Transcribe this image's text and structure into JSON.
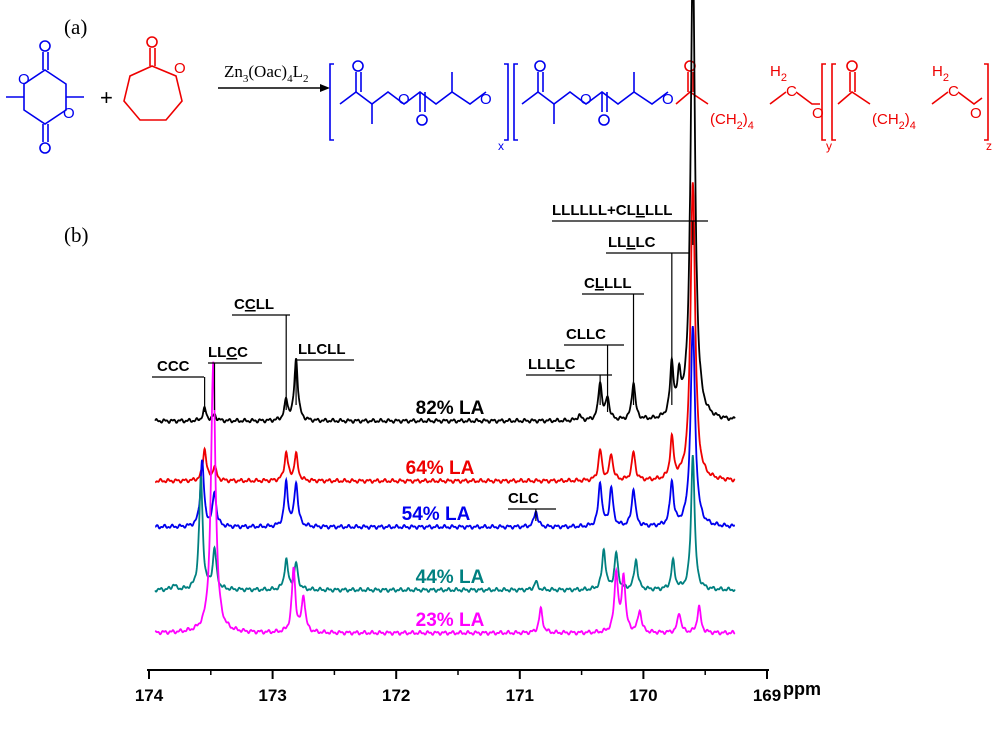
{
  "panel_a_label": "(a)",
  "panel_b_label": "(b)",
  "scheme": {
    "plus": "+",
    "catalyst": "Zn",
    "catalyst_sub1": "3",
    "catalyst_mid": "(Oac)",
    "catalyst_sub2": "4",
    "catalyst_end": "L",
    "catalyst_sub3": "2",
    "ch2_group": "(CH",
    "ch2_sub": "2",
    "ch2_close": ")",
    "ch2_count": "4",
    "h2": "H",
    "h2_sub": "2",
    "c_atom": "C",
    "o_atom": "O",
    "sub_x": "x",
    "sub_y": "y",
    "sub_z": "z",
    "colors": {
      "lactide": "#0000ee",
      "caprolactone": "#ee0000"
    }
  },
  "peak_labels": [
    {
      "pre": "CCC",
      "ul": "",
      "post": "",
      "shift": 173.55
    },
    {
      "pre": "LL",
      "ul": "C",
      "post": "C",
      "shift": 173.47
    },
    {
      "pre": "C",
      "ul": "C",
      "post": "LL",
      "shift": 172.89
    },
    {
      "pre": "LLCLL",
      "ul": "",
      "post": "",
      "shift": 172.81
    },
    {
      "pre": "LLL",
      "ul": "L",
      "post": "C",
      "shift": 170.35
    },
    {
      "pre": "CLLC",
      "ul": "",
      "post": "",
      "shift": 170.29
    },
    {
      "pre": "C",
      "ul": "L",
      "post": "LLL",
      "shift": 170.08
    },
    {
      "pre": "LL",
      "ul": "L",
      "post": "LC",
      "shift": 169.77
    },
    {
      "pre": "LLLLLL+CL",
      "ul": "L",
      "post": "LLL",
      "shift": 169.6
    },
    {
      "pre": "CLC",
      "ul": "",
      "post": "",
      "shift": 170.87
    }
  ],
  "chart_data": {
    "type": "line",
    "xlabel": "ppm",
    "x_reversed": true,
    "xlim": [
      174,
      169
    ],
    "x_ticks": [
      "174",
      "173",
      "172",
      "171",
      "170",
      "169"
    ],
    "y_axis": "stacked traces, intensity offset, no y axis",
    "series": [
      {
        "name": "82% LA",
        "color": "#000000",
        "peaks": [
          [
            173.55,
            0.12
          ],
          [
            173.47,
            0.06
          ],
          [
            172.89,
            0.2
          ],
          [
            172.81,
            0.62
          ],
          [
            170.52,
            0.05
          ],
          [
            170.35,
            0.38
          ],
          [
            170.29,
            0.22
          ],
          [
            170.08,
            0.38
          ],
          [
            169.77,
            0.52
          ],
          [
            169.71,
            0.35
          ],
          [
            169.6,
            4.6
          ]
        ]
      },
      {
        "name": "64% LA",
        "color": "#ee0000",
        "peaks": [
          [
            173.55,
            0.32
          ],
          [
            173.47,
            0.14
          ],
          [
            172.89,
            0.28
          ],
          [
            172.81,
            0.26
          ],
          [
            170.35,
            0.3
          ],
          [
            170.26,
            0.26
          ],
          [
            170.08,
            0.28
          ],
          [
            169.77,
            0.4
          ],
          [
            169.6,
            3.0
          ]
        ]
      },
      {
        "name": "54% LA",
        "color": "#0000ee",
        "peaks": [
          [
            173.57,
            0.66
          ],
          [
            173.47,
            0.34
          ],
          [
            172.89,
            0.44
          ],
          [
            172.81,
            0.44
          ],
          [
            170.87,
            0.16
          ],
          [
            170.35,
            0.44
          ],
          [
            170.26,
            0.38
          ],
          [
            170.08,
            0.38
          ],
          [
            169.77,
            0.44
          ],
          [
            169.6,
            2.0
          ]
        ]
      },
      {
        "name": "44% LA",
        "color": "#008080",
        "peaks": [
          [
            173.8,
            0.05
          ],
          [
            173.58,
            1.12
          ],
          [
            173.47,
            0.4
          ],
          [
            172.89,
            0.3
          ],
          [
            172.81,
            0.26
          ],
          [
            170.87,
            0.08
          ],
          [
            170.32,
            0.4
          ],
          [
            170.22,
            0.36
          ],
          [
            170.06,
            0.3
          ],
          [
            169.76,
            0.28
          ],
          [
            169.6,
            1.36
          ]
        ]
      },
      {
        "name": "23% LA",
        "color": "#ff00ff",
        "peaks": [
          [
            173.48,
            2.7
          ],
          [
            172.83,
            0.64
          ],
          [
            172.75,
            0.36
          ],
          [
            170.83,
            0.24
          ],
          [
            170.22,
            0.6
          ],
          [
            170.16,
            0.56
          ],
          [
            170.03,
            0.22
          ],
          [
            169.71,
            0.2
          ],
          [
            169.55,
            0.26
          ]
        ]
      }
    ]
  }
}
